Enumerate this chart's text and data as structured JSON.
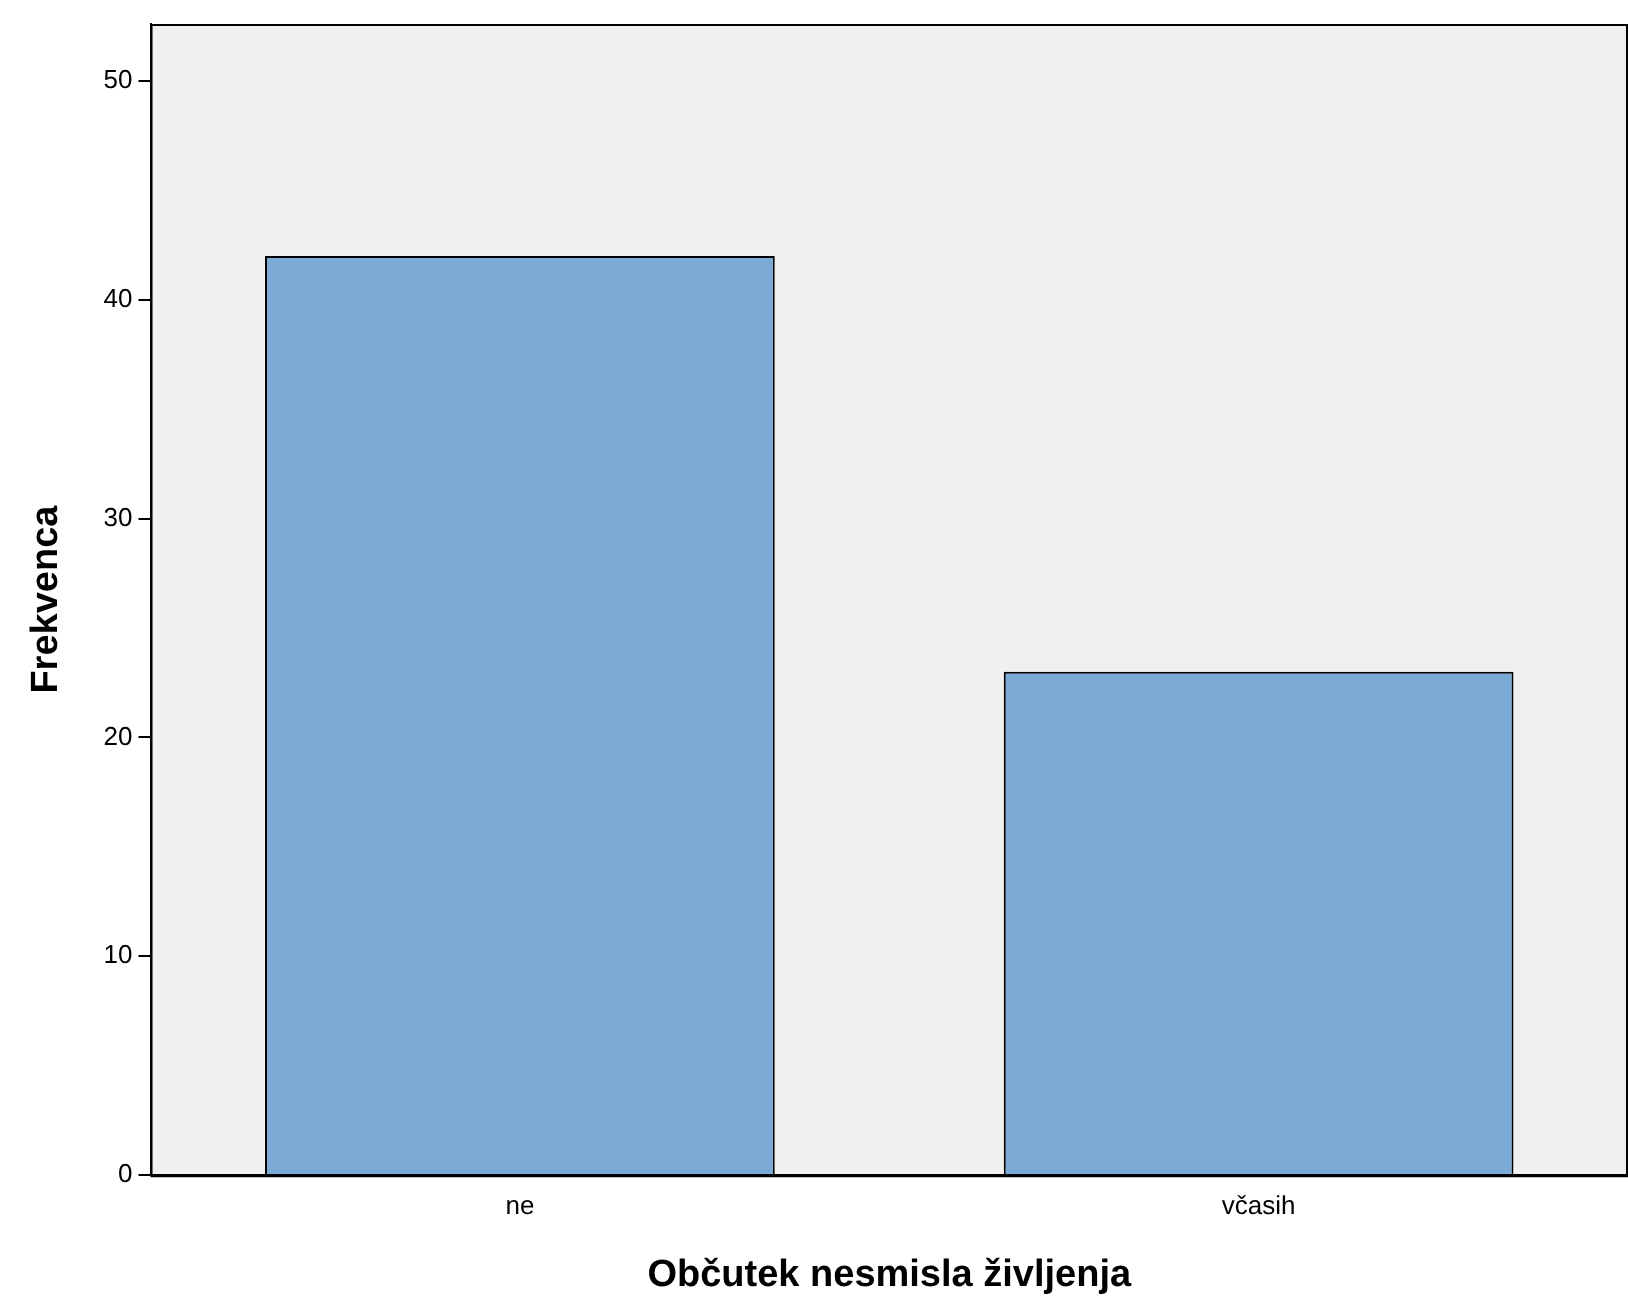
{
  "chart_data": {
    "type": "bar",
    "xlabel": "Občutek nesmisla življenja",
    "ylabel": "Frekvenca",
    "categories": [
      "ne",
      "včasih"
    ],
    "values": [
      42,
      23
    ],
    "color": "#7baad6",
    "ylim": [
      0,
      52.6
    ],
    "yticks": [
      0,
      10,
      20,
      30,
      40,
      50
    ],
    "grid": false,
    "legend": false
  }
}
